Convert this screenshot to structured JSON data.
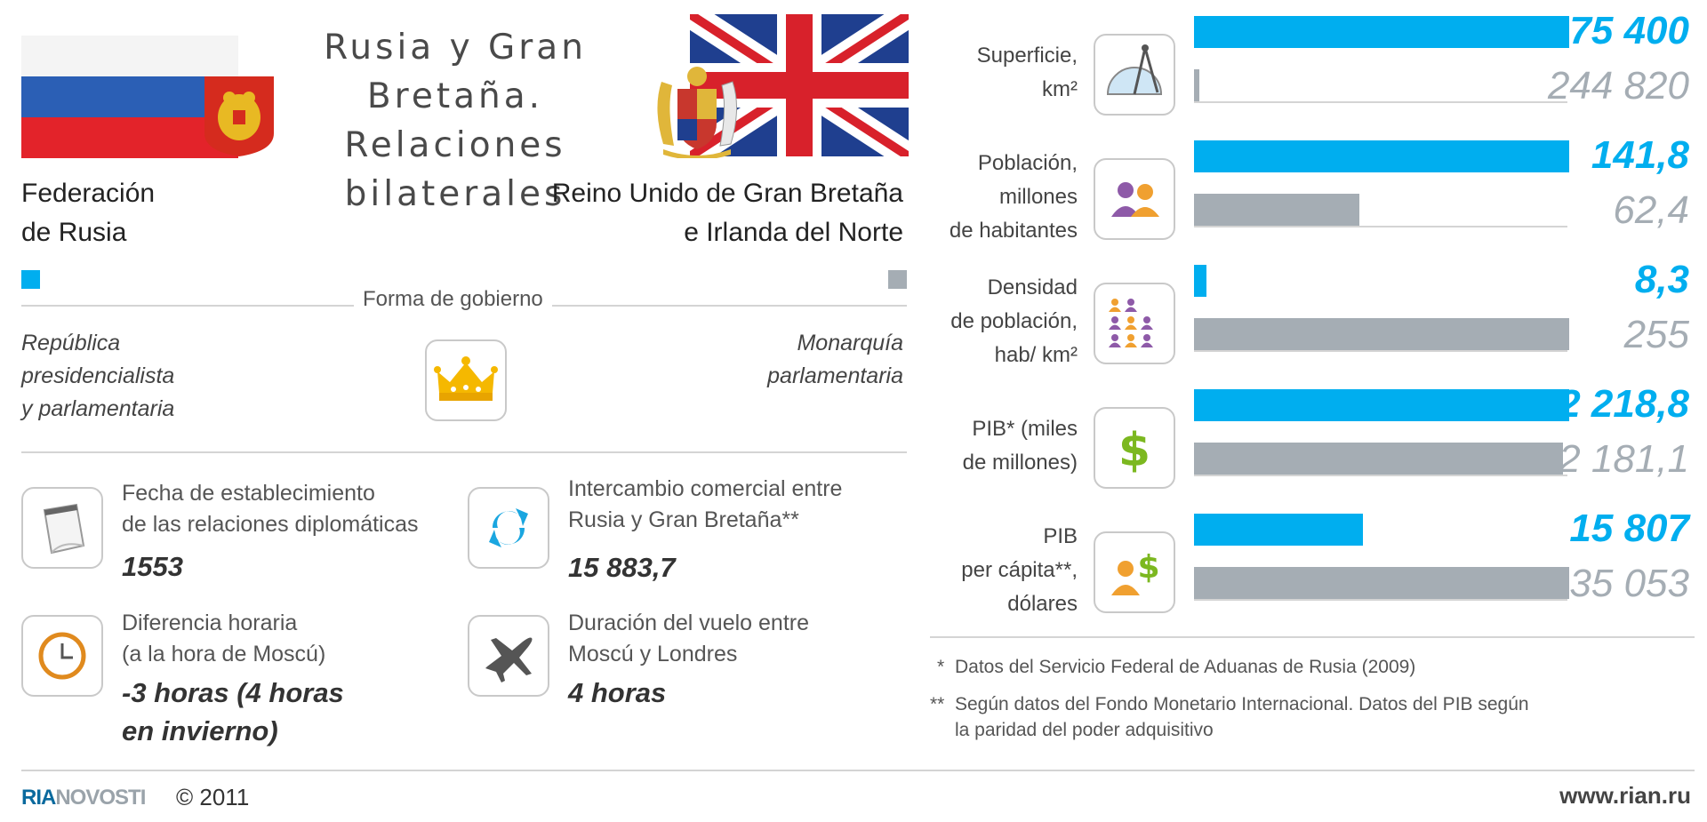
{
  "header": {
    "title_line1": "Rusia y Gran Bretaña.",
    "title_line2": "Relaciones",
    "title_line3": "bilaterales",
    "russia_line1": "Federación",
    "russia_line2": "de Rusia",
    "uk_line1": "Reino Unido de Gran Bretaña",
    "uk_line2": "e Irlanda del Norte"
  },
  "colors": {
    "russia": "#00aeef",
    "uk": "#a5adb4"
  },
  "government": {
    "label": "Forma de gobierno",
    "russia_line1": "República",
    "russia_line2": "presidencialista",
    "russia_line3": "y parlamentaria",
    "uk_line1": "Monarquía",
    "uk_line2": "parlamentaria",
    "icon": "crown-icon"
  },
  "info": {
    "diplomatic": {
      "label1": "Fecha de establecimiento",
      "label2": "de las relaciones diplomáticas",
      "value": "1553",
      "icon": "notepad-icon"
    },
    "trade": {
      "label1": "Intercambio comercial entre",
      "label2": "Rusia y Gran Bretaña**",
      "value": "15 883,7",
      "icon": "exchange-arrows-icon"
    },
    "time": {
      "label1": "Diferencia horaria",
      "label2": "(a la hora de Moscú)",
      "value1": "-3 horas (4 horas",
      "value2": "en invierno)",
      "icon": "clock-icon"
    },
    "flight": {
      "label1": "Duración del vuelo entre",
      "label2": "Moscú y Londres",
      "value": "4 horas",
      "icon": "airplane-icon"
    }
  },
  "chart_data": {
    "type": "bar",
    "series": [
      {
        "name": "Federación de Rusia",
        "color": "#00aeef"
      },
      {
        "name": "Reino Unido de Gran Bretaña e Irlanda del Norte",
        "color": "#a5adb4"
      }
    ],
    "categories": [
      {
        "label_lines": [
          "Superficie,",
          "km²"
        ],
        "russia": 17075400,
        "uk": 244820,
        "russia_label": "17 075 400",
        "uk_label": "244 820",
        "icon": "compass-ruler-icon"
      },
      {
        "label_lines": [
          "Población,",
          "millones",
          "de habitantes"
        ],
        "russia": 141.8,
        "uk": 62.4,
        "russia_label": "141,8",
        "uk_label": "62,4",
        "icon": "people-icon"
      },
      {
        "label_lines": [
          "Densidad",
          "de población,",
          "hab/ km²"
        ],
        "russia": 8.3,
        "uk": 255,
        "russia_label": "8,3",
        "uk_label": "255",
        "icon": "crowd-icon"
      },
      {
        "label_lines": [
          "PIB* (miles",
          "de millones)"
        ],
        "russia": 2218.8,
        "uk": 2181.1,
        "russia_label": "2 218,8",
        "uk_label": "2 181,1",
        "icon": "dollar-icon"
      },
      {
        "label_lines": [
          "PIB",
          "per cápita**,",
          "dólares"
        ],
        "russia": 15807,
        "uk": 35053,
        "russia_label": "15 807",
        "uk_label": "35 053",
        "icon": "person-dollar-icon"
      }
    ]
  },
  "notes": {
    "note1_mark": "*",
    "note1": "Datos del Servicio Federal de Aduanas de Rusia (2009)",
    "note2_mark": "**",
    "note2_line1": "Según datos del Fondo Monetario Internacional. Datos del PIB según",
    "note2_line2": "la paridad del poder adquisitivo"
  },
  "footer": {
    "logo_part1": "RIA",
    "logo_part2": "NOVOSTI",
    "copyright": "© 2011",
    "url": "www.rian.ru"
  }
}
